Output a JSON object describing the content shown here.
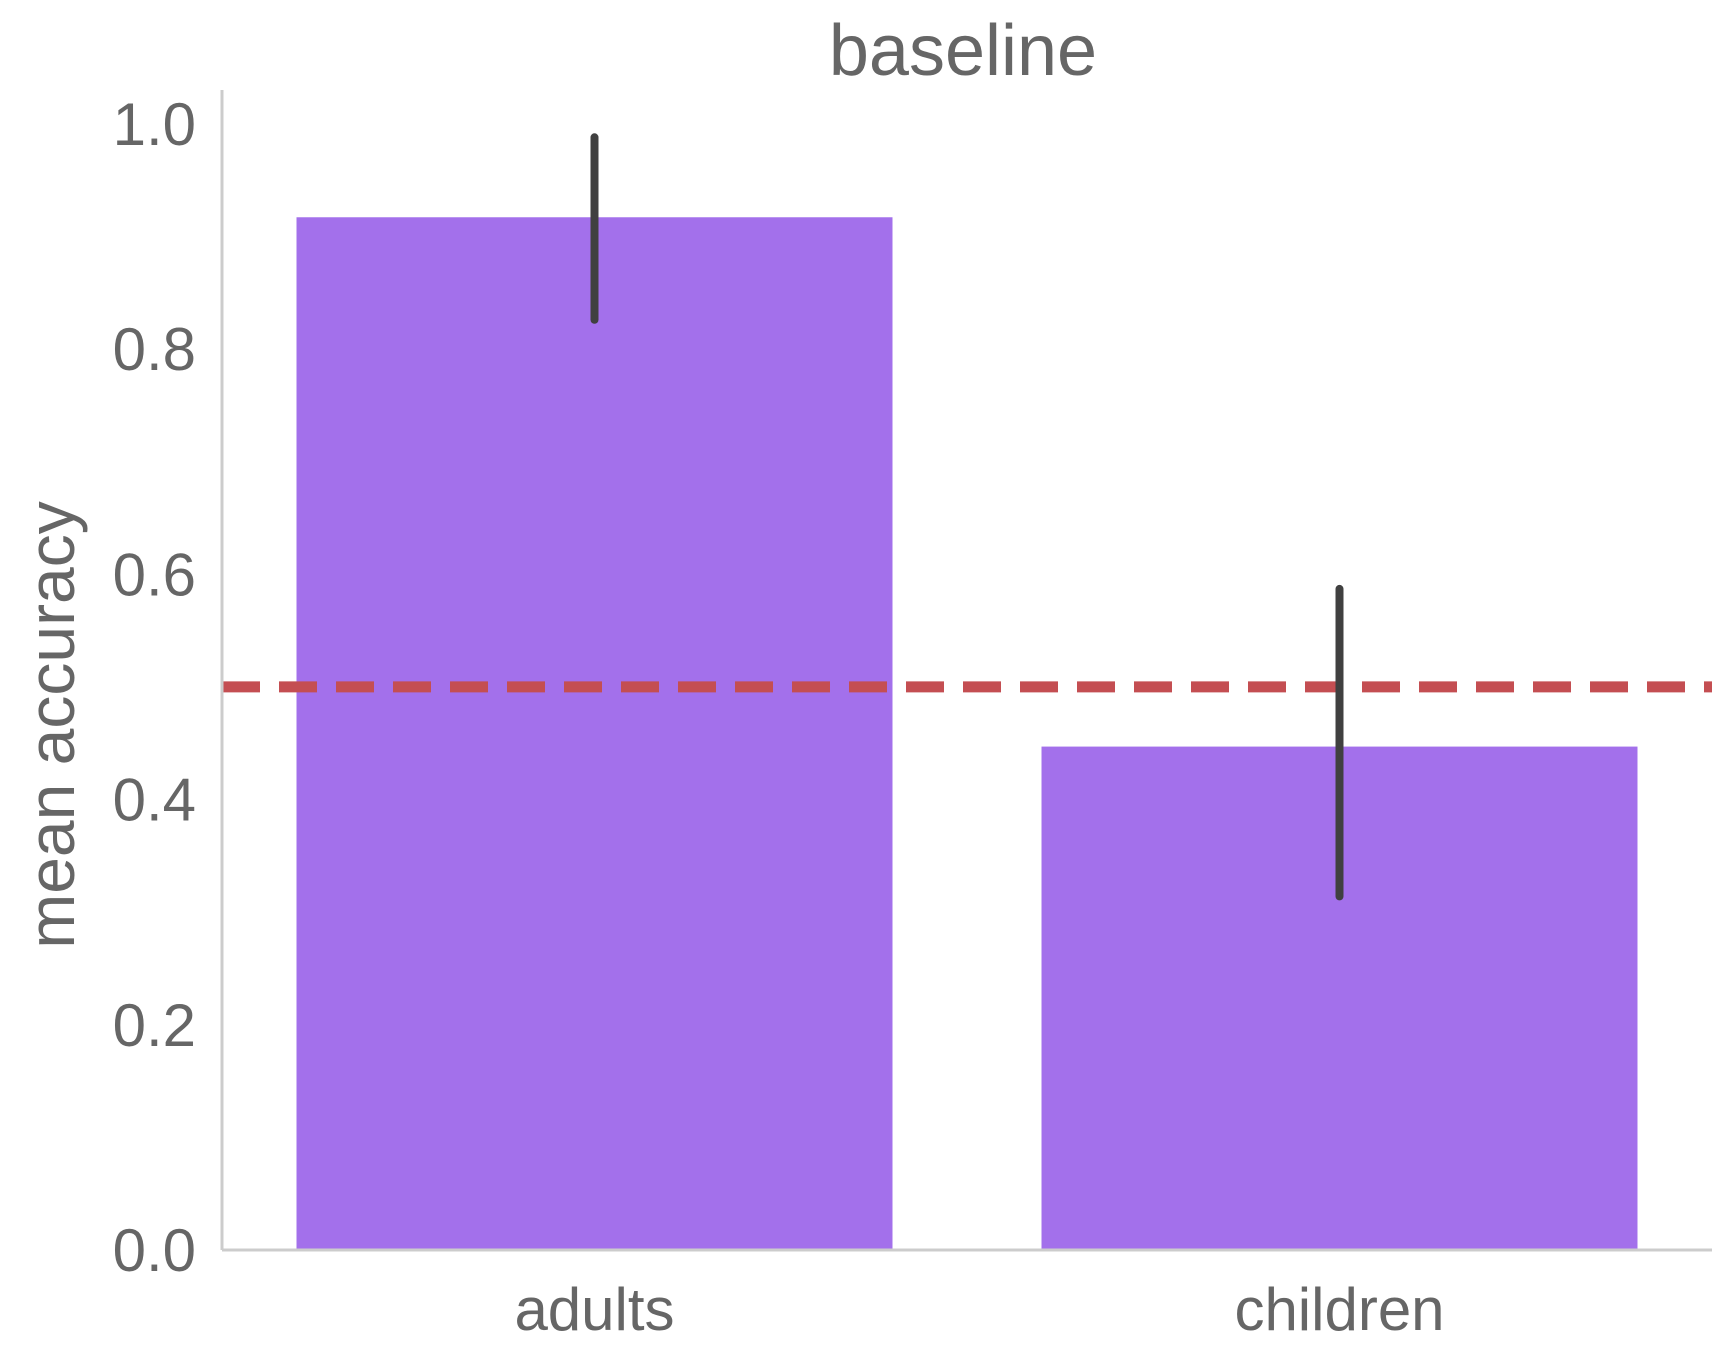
{
  "chart_data": {
    "type": "bar",
    "title": "baseline",
    "xlabel": "",
    "ylabel": "mean accuracy",
    "categories": [
      "adults",
      "children"
    ],
    "values": [
      0.917,
      0.447
    ],
    "error_bars": [
      {
        "low": 0.826,
        "high": 0.988
      },
      {
        "low": 0.314,
        "high": 0.587
      }
    ],
    "ylim": [
      0.0,
      1.03
    ],
    "yticks": [
      0.0,
      0.2,
      0.4,
      0.6,
      0.8,
      1.0
    ],
    "ytick_labels": [
      "0.0",
      "0.2",
      "0.4",
      "0.6",
      "0.8",
      "1.0"
    ],
    "reference_line": {
      "y": 0.5,
      "style": "dashed"
    },
    "grid": false,
    "colors": {
      "bar": "#a370eb",
      "error_bar": "#404040",
      "reference_line": "#c44e52",
      "spine": "#cccccc",
      "text": "#666666"
    }
  }
}
